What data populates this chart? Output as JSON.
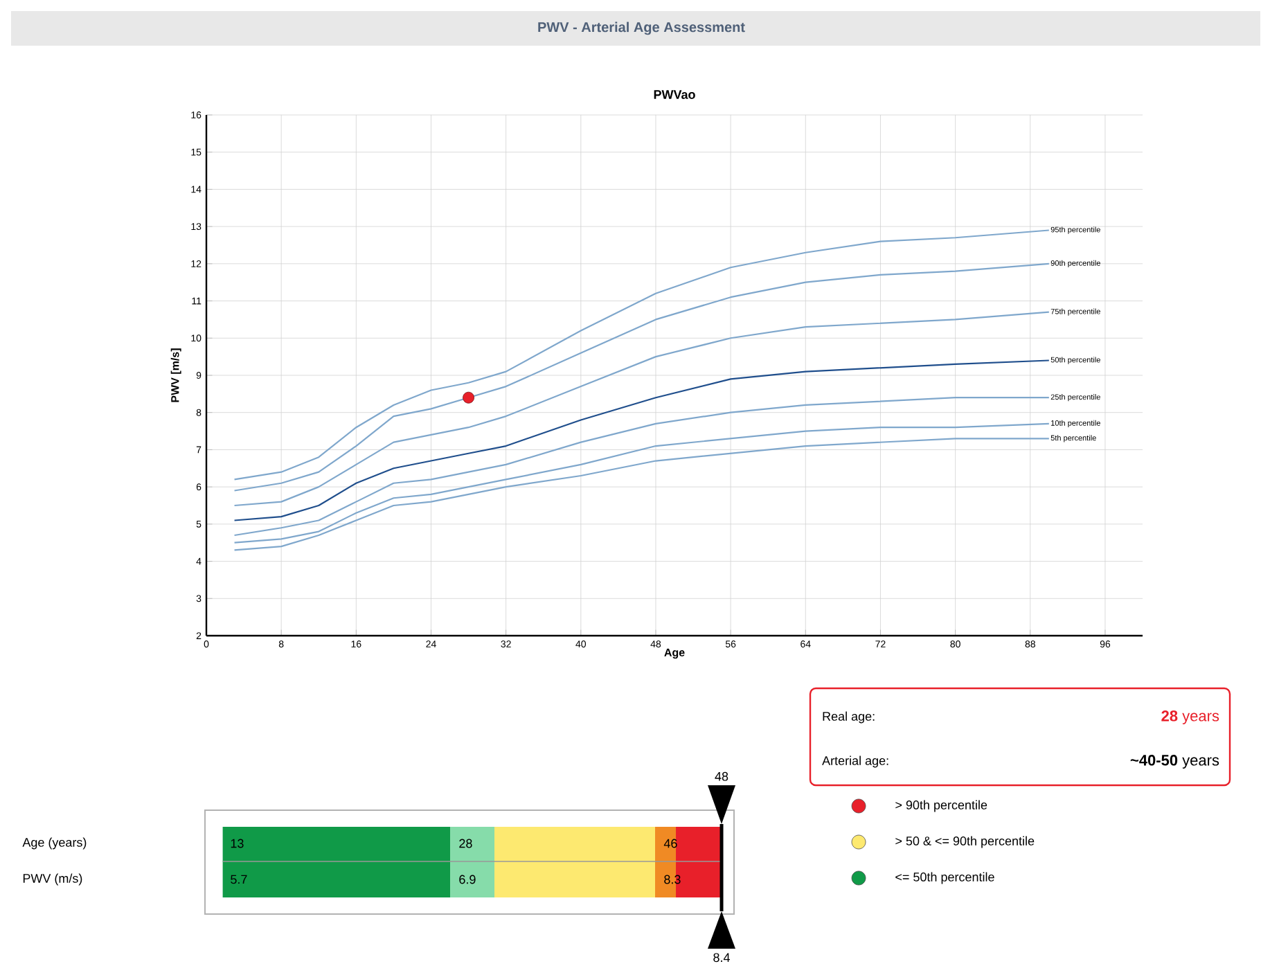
{
  "chart_data": [
    {
      "type": "line",
      "title": "PWV - Arterial Age Assessment",
      "subtitle": "PWVao",
      "xlabel": "Age",
      "ylabel": "PWV [m/s]",
      "xlim": [
        0,
        100
      ],
      "ylim": [
        2,
        16
      ],
      "xticks": [
        0,
        8,
        16,
        24,
        32,
        40,
        48,
        56,
        64,
        72,
        80,
        88,
        96
      ],
      "yticks": [
        2,
        3,
        4,
        5,
        6,
        7,
        8,
        9,
        10,
        11,
        12,
        13,
        14,
        15,
        16
      ],
      "grid": true,
      "line_style": "solid",
      "series": [
        {
          "name": "95th percentile",
          "color": "#7fa7cc",
          "x": [
            3,
            8,
            12,
            16,
            20,
            24,
            28,
            32,
            40,
            48,
            56,
            64,
            72,
            80,
            90
          ],
          "values": [
            6.2,
            6.4,
            6.8,
            7.6,
            8.2,
            8.6,
            8.8,
            9.1,
            10.2,
            11.2,
            11.9,
            12.3,
            12.6,
            12.7,
            12.9
          ]
        },
        {
          "name": "90th percentile",
          "color": "#7fa7cc",
          "x": [
            3,
            8,
            12,
            16,
            20,
            24,
            28,
            32,
            40,
            48,
            56,
            64,
            72,
            80,
            90
          ],
          "values": [
            5.9,
            6.1,
            6.4,
            7.1,
            7.9,
            8.1,
            8.4,
            8.7,
            9.6,
            10.5,
            11.1,
            11.5,
            11.7,
            11.8,
            12.0
          ]
        },
        {
          "name": "75th percentile",
          "color": "#7fa7cc",
          "x": [
            3,
            8,
            12,
            16,
            20,
            24,
            28,
            32,
            40,
            48,
            56,
            64,
            72,
            80,
            90
          ],
          "values": [
            5.5,
            5.6,
            6.0,
            6.6,
            7.2,
            7.4,
            7.6,
            7.9,
            8.7,
            9.5,
            10.0,
            10.3,
            10.4,
            10.5,
            10.7
          ]
        },
        {
          "name": "50th percentile",
          "color": "#1f4e8c",
          "x": [
            3,
            8,
            12,
            16,
            20,
            24,
            28,
            32,
            40,
            48,
            56,
            64,
            72,
            80,
            90
          ],
          "values": [
            5.1,
            5.2,
            5.5,
            6.1,
            6.5,
            6.7,
            6.9,
            7.1,
            7.8,
            8.4,
            8.9,
            9.1,
            9.2,
            9.3,
            9.4
          ]
        },
        {
          "name": "25th percentile",
          "color": "#7fa7cc",
          "x": [
            3,
            8,
            12,
            16,
            20,
            24,
            28,
            32,
            40,
            48,
            56,
            64,
            72,
            80,
            90
          ],
          "values": [
            4.7,
            4.9,
            5.1,
            5.6,
            6.1,
            6.2,
            6.4,
            6.6,
            7.2,
            7.7,
            8.0,
            8.2,
            8.3,
            8.4,
            8.4
          ]
        },
        {
          "name": "10th percentile",
          "color": "#7fa7cc",
          "x": [
            3,
            8,
            12,
            16,
            20,
            24,
            28,
            32,
            40,
            48,
            56,
            64,
            72,
            80,
            90
          ],
          "values": [
            4.5,
            4.6,
            4.8,
            5.3,
            5.7,
            5.8,
            6.0,
            6.2,
            6.6,
            7.1,
            7.3,
            7.5,
            7.6,
            7.6,
            7.7
          ]
        },
        {
          "name": "5th percentile",
          "color": "#7fa7cc",
          "x": [
            3,
            8,
            12,
            16,
            20,
            24,
            28,
            32,
            40,
            48,
            56,
            64,
            72,
            80,
            90
          ],
          "values": [
            4.3,
            4.4,
            4.7,
            5.1,
            5.5,
            5.6,
            5.8,
            6.0,
            6.3,
            6.7,
            6.9,
            7.1,
            7.2,
            7.3,
            7.3
          ]
        },
        {
          "type": "scatter",
          "color": "#e8202a",
          "x": [
            28
          ],
          "values": [
            8.4
          ]
        }
      ]
    },
    {
      "type": "other",
      "colors": [
        "#109a48",
        "#86dcaa",
        "#fde970",
        "#f08a24",
        "#e8202a"
      ],
      "annotations": [
        "Age (years)",
        "PWV (m/s)",
        "13",
        "28",
        "46",
        "5.7",
        "6.9",
        "8.3",
        "48",
        "8.4",
        "> 90th percentile",
        "> 50 & <= 90th percentile",
        "<= 50th percentile"
      ]
    },
    {
      "type": "other",
      "annotations": [
        "Real age:",
        "**28** years",
        "Arterial age:",
        "**~40-50** years"
      ]
    }
  ]
}
